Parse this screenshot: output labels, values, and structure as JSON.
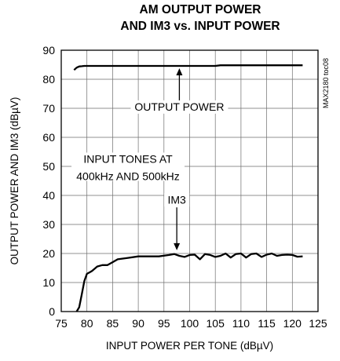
{
  "chart_data": {
    "type": "line",
    "title": [
      "AM OUTPUT POWER",
      "AND IM3 vs. INPUT POWER"
    ],
    "xlabel": "INPUT POWER PER TONE (dBµV)",
    "ylabel": "OUTPUT POWER AND IM3 (dBµV)",
    "xlim": [
      75,
      125
    ],
    "ylim": [
      0,
      90
    ],
    "xticks": [
      75,
      80,
      85,
      90,
      95,
      100,
      105,
      110,
      115,
      120,
      125
    ],
    "yticks": [
      0,
      10,
      20,
      30,
      40,
      50,
      60,
      70,
      80,
      90
    ],
    "grid": true,
    "series": [
      {
        "name": "OUTPUT POWER",
        "x": [
          77.5,
          78,
          78.5,
          79,
          79.5,
          80,
          81,
          82,
          85,
          90,
          95,
          100,
          105,
          106,
          110,
          115,
          120,
          122
        ],
        "y": [
          83.2,
          84,
          84.4,
          84.5,
          84.6,
          84.6,
          84.6,
          84.6,
          84.6,
          84.6,
          84.6,
          84.6,
          84.6,
          84.8,
          84.8,
          84.8,
          84.8,
          84.8
        ]
      },
      {
        "name": "IM3",
        "x": [
          78,
          78.5,
          79,
          79.5,
          80,
          80.5,
          81,
          82,
          83,
          84,
          85,
          86,
          88,
          90,
          92,
          94,
          96,
          97,
          98,
          99,
          100,
          101,
          102,
          103,
          104,
          105,
          106,
          107,
          108,
          109,
          110,
          111,
          112,
          113,
          114,
          115,
          116,
          117,
          118,
          119,
          120,
          121,
          122
        ],
        "y": [
          0,
          1.5,
          6,
          10.5,
          13,
          13.5,
          14,
          15.5,
          16,
          16,
          17,
          18,
          18.5,
          19,
          19,
          19,
          19.5,
          19.8,
          19.2,
          18.8,
          19.5,
          19.6,
          18,
          19.8,
          19.5,
          18.8,
          19.2,
          20,
          18.6,
          19.8,
          20,
          18.6,
          19.8,
          20,
          18.8,
          19.6,
          20,
          19.2,
          19.5,
          19.6,
          19.5,
          18.9,
          19
        ]
      }
    ],
    "annotations": [
      {
        "text": "OUTPUT POWER",
        "x": 98,
        "y": 69.5
      },
      {
        "text": "INPUT TONES AT",
        "x": 88,
        "y": 51.5
      },
      {
        "text": "400kHz AND 500kHz",
        "x": 88,
        "y": 45.5
      },
      {
        "text": "IM3",
        "x": 97.5,
        "y": 37.5
      }
    ],
    "side_label": "MAX2180 toc08"
  }
}
